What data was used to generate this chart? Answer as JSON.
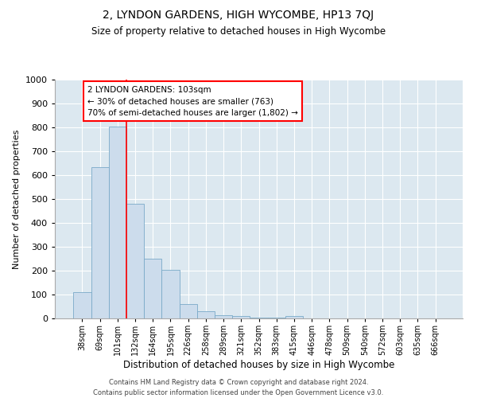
{
  "title": "2, LYNDON GARDENS, HIGH WYCOMBE, HP13 7QJ",
  "subtitle": "Size of property relative to detached houses in High Wycombe",
  "xlabel": "Distribution of detached houses by size in High Wycombe",
  "ylabel": "Number of detached properties",
  "bar_color": "#ccdcec",
  "bar_edge_color": "#7aaac8",
  "bg_color": "#dce8f0",
  "grid_color": "#ffffff",
  "categories": [
    "38sqm",
    "69sqm",
    "101sqm",
    "132sqm",
    "164sqm",
    "195sqm",
    "226sqm",
    "258sqm",
    "289sqm",
    "321sqm",
    "352sqm",
    "383sqm",
    "415sqm",
    "446sqm",
    "478sqm",
    "509sqm",
    "540sqm",
    "572sqm",
    "603sqm",
    "635sqm",
    "666sqm"
  ],
  "values": [
    110,
    635,
    805,
    480,
    250,
    205,
    60,
    30,
    15,
    10,
    5,
    3,
    10,
    0,
    0,
    0,
    0,
    0,
    0,
    0,
    0
  ],
  "ylim": [
    0,
    1000
  ],
  "yticks": [
    0,
    100,
    200,
    300,
    400,
    500,
    600,
    700,
    800,
    900,
    1000
  ],
  "red_line_after_index": 2,
  "ann_line1": "2 LYNDON GARDENS: 103sqm",
  "ann_line2": "← 30% of detached houses are smaller (763)",
  "ann_line3": "70% of semi-detached houses are larger (1,802) →",
  "footer_line1": "Contains HM Land Registry data © Crown copyright and database right 2024.",
  "footer_line2": "Contains public sector information licensed under the Open Government Licence v3.0."
}
